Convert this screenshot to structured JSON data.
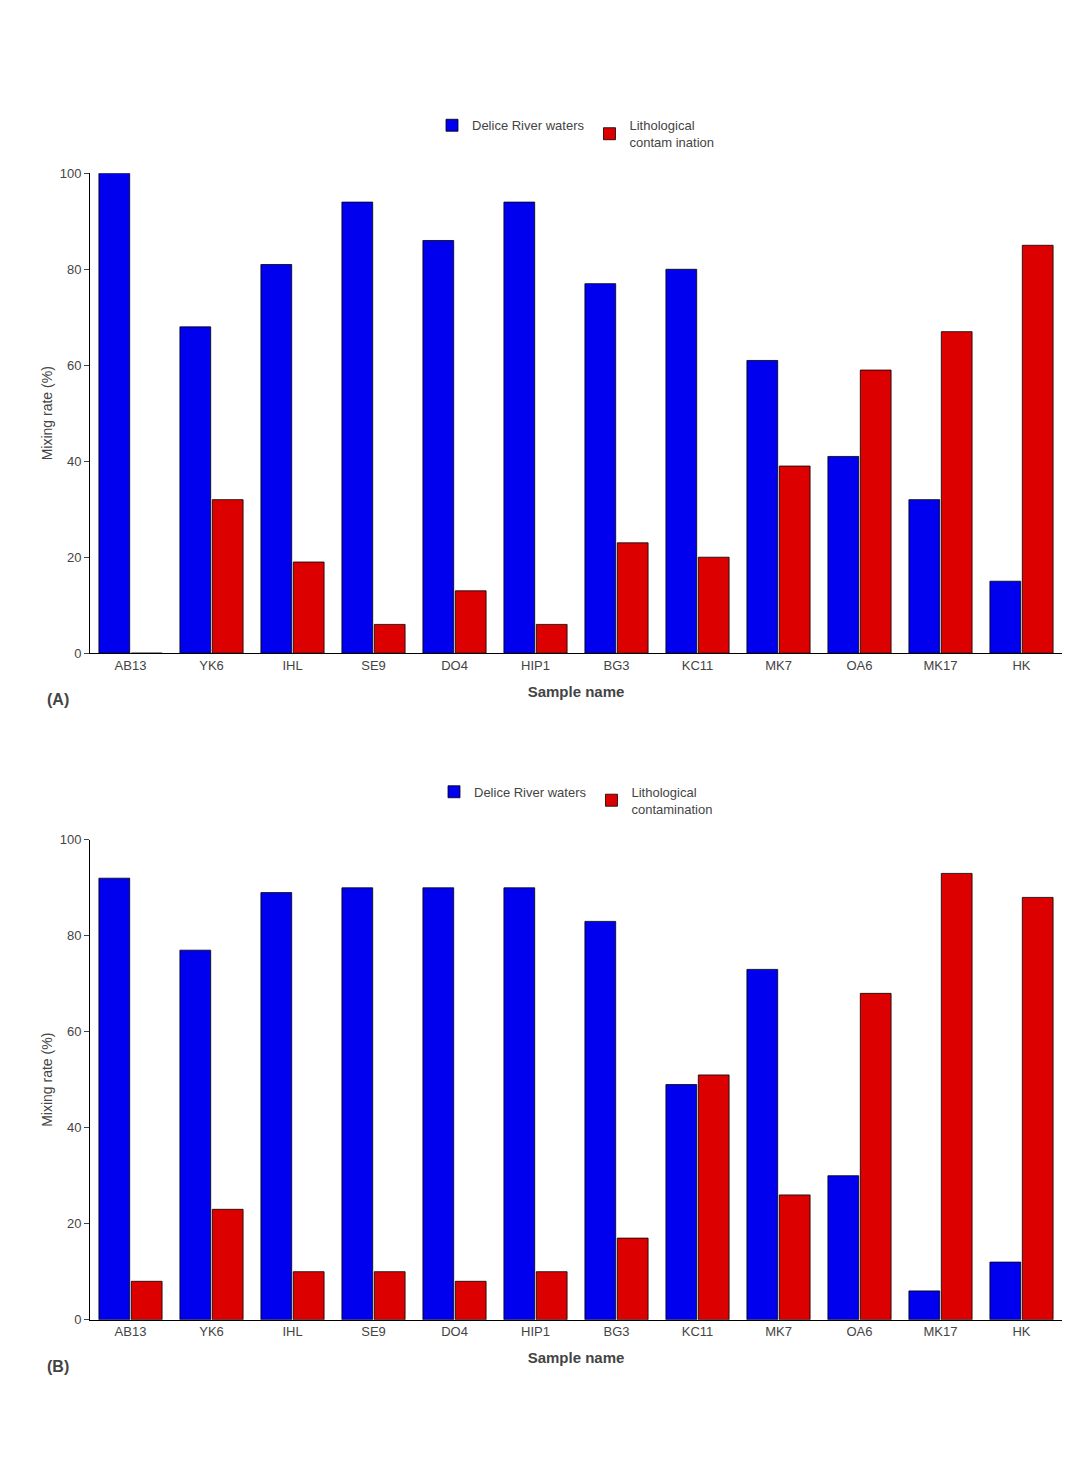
{
  "chart_data": [
    {
      "type": "bar",
      "categories": [
        "AB13",
        "YK6",
        "IHL",
        "SE9",
        "DO4",
        "HIP1",
        "BG3",
        "KC11",
        "MK7",
        "OA6",
        "MK17",
        "HK"
      ],
      "series": [
        {
          "name": "Delice River waters",
          "color": "#0000ee",
          "values": [
            100,
            68,
            81,
            94,
            86,
            94,
            77,
            80,
            61,
            41,
            32,
            15
          ]
        },
        {
          "name": "Lithological\ncontam ination",
          "color": "#dd0000",
          "values": [
            0,
            32,
            19,
            6,
            13,
            6,
            23,
            20,
            39,
            59,
            67,
            85
          ]
        }
      ],
      "xlabel": "Sample name",
      "ylabel": "Mixing rate (%)",
      "annotations": [
        "(A)"
      ],
      "ylim": [
        0,
        100
      ],
      "yticks": [
        0,
        20,
        40,
        60,
        80,
        100
      ],
      "legend": "top",
      "grid": false
    },
    {
      "type": "bar",
      "categories": [
        "AB13",
        "YK6",
        "IHL",
        "SE9",
        "DO4",
        "HIP1",
        "BG3",
        "KC11",
        "MK7",
        "OA6",
        "MK17",
        "HK"
      ],
      "series": [
        {
          "name": "Delice River waters",
          "color": "#0000ee",
          "values": [
            92,
            77,
            89,
            90,
            90,
            90,
            83,
            49,
            73,
            30,
            6,
            12
          ]
        },
        {
          "name": "Lithological\ncontamination",
          "color": "#dd0000",
          "values": [
            8,
            23,
            10,
            10,
            8,
            10,
            17,
            51,
            26,
            68,
            93,
            88
          ]
        }
      ],
      "xlabel": "Sample name",
      "ylabel": "Mixing rate (%)",
      "annotations": [
        "(B)"
      ],
      "ylim": [
        0,
        100
      ],
      "yticks": [
        0,
        20,
        40,
        60,
        80,
        100
      ],
      "legend": "top",
      "grid": false
    }
  ]
}
